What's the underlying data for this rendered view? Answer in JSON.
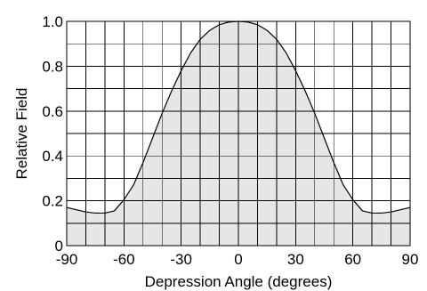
{
  "chart_data": {
    "type": "area",
    "xlabel": "Depression Angle (degrees)",
    "ylabel": "Relative Field",
    "xlim": [
      -90,
      90
    ],
    "ylim": [
      0,
      1.0
    ],
    "x_ticks": [
      -90,
      -60,
      -30,
      0,
      30,
      60,
      90
    ],
    "x_tick_labels": [
      "-90",
      "-60",
      "-30",
      "0",
      "30",
      "60",
      "90"
    ],
    "x_grid_step": 10,
    "y_ticks": [
      0,
      0.2,
      0.4,
      0.6,
      0.8,
      1.0
    ],
    "y_tick_labels": [
      "0",
      "0.2",
      "0.4",
      "0.6",
      "0.8",
      "1.0"
    ],
    "y_grid_step": 0.1,
    "grid": true,
    "legend": "none",
    "fill_color": "#e6e6e6",
    "line_color": "#000000",
    "grid_color": "#000000",
    "series": [
      {
        "x": [
          -90,
          -85,
          -80,
          -75,
          -70,
          -65,
          -60,
          -55,
          -50,
          -45,
          -40,
          -35,
          -30,
          -25,
          -20,
          -15,
          -10,
          -5,
          0,
          5,
          10,
          15,
          20,
          25,
          30,
          35,
          40,
          45,
          50,
          55,
          60,
          65,
          70,
          75,
          80,
          85,
          90
        ],
        "values": [
          0.17,
          0.16,
          0.15,
          0.145,
          0.145,
          0.155,
          0.205,
          0.27,
          0.37,
          0.48,
          0.59,
          0.69,
          0.78,
          0.86,
          0.92,
          0.96,
          0.985,
          0.997,
          1.0,
          0.997,
          0.985,
          0.96,
          0.92,
          0.86,
          0.78,
          0.69,
          0.59,
          0.48,
          0.37,
          0.27,
          0.205,
          0.155,
          0.145,
          0.145,
          0.15,
          0.16,
          0.17
        ]
      }
    ]
  }
}
